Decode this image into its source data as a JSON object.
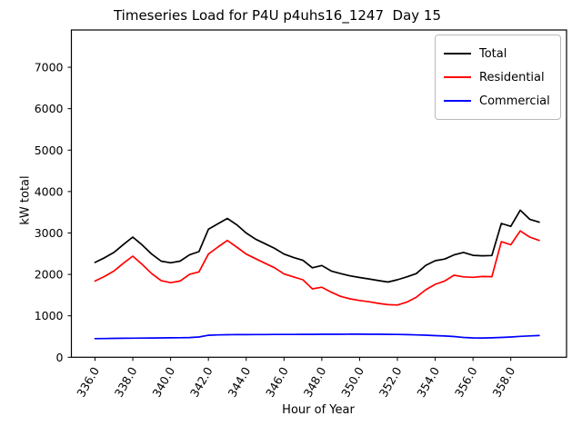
{
  "figure": {
    "title": "Timeseries Load for P4U p4uhs16_1247  Day 15",
    "xlabel": "Hour of Year",
    "ylabel": "kW total"
  },
  "legend": {
    "entries": [
      {
        "label": "Total",
        "color": "#000000"
      },
      {
        "label": "Residential",
        "color": "#ff0000"
      },
      {
        "label": "Commercial",
        "color": "#0000ff"
      }
    ]
  },
  "chart_data": {
    "type": "line",
    "title": "Timeseries Load for P4U p4uhs16_1247  Day 15",
    "xlabel": "Hour of Year",
    "ylabel": "kW total",
    "xlim": [
      334.75,
      360.95
    ],
    "ylim": [
      0,
      7900
    ],
    "xticks": [
      336,
      338,
      340,
      342,
      344,
      346,
      348,
      350,
      352,
      354,
      356,
      358
    ],
    "yticks": [
      0,
      1000,
      2000,
      3000,
      4000,
      5000,
      6000,
      7000
    ],
    "grid": false,
    "legend_position": "upper right",
    "x": [
      336.0,
      336.5,
      337.0,
      337.5,
      338.0,
      338.5,
      339.0,
      339.5,
      340.0,
      340.5,
      341.0,
      341.5,
      342.0,
      342.5,
      343.0,
      343.5,
      344.0,
      344.5,
      345.0,
      345.5,
      346.0,
      346.5,
      347.0,
      347.5,
      348.0,
      348.5,
      349.0,
      349.5,
      350.0,
      350.5,
      351.0,
      351.5,
      352.0,
      352.5,
      353.0,
      353.5,
      354.0,
      354.5,
      355.0,
      355.5,
      356.0,
      356.5,
      357.0,
      357.5,
      358.0,
      358.5,
      359.0,
      359.5
    ],
    "series": [
      {
        "name": "Total",
        "color": "#000000",
        "values": [
          2290,
          2400,
          2530,
          2720,
          2900,
          2710,
          2490,
          2320,
          2280,
          2320,
          2470,
          2550,
          3090,
          3220,
          3350,
          3200,
          3000,
          2850,
          2740,
          2630,
          2490,
          2410,
          2340,
          2160,
          2215,
          2080,
          2020,
          1965,
          1925,
          1890,
          1850,
          1815,
          1870,
          1940,
          2020,
          2220,
          2330,
          2370,
          2470,
          2530,
          2460,
          2450,
          2455,
          3230,
          3160,
          3550,
          3330,
          3260
        ]
      },
      {
        "name": "Residential",
        "color": "#ff0000",
        "values": [
          1840,
          1950,
          2080,
          2270,
          2440,
          2240,
          2020,
          1850,
          1800,
          1840,
          2000,
          2060,
          2490,
          2660,
          2820,
          2660,
          2490,
          2380,
          2270,
          2160,
          2010,
          1940,
          1870,
          1650,
          1690,
          1570,
          1470,
          1410,
          1370,
          1340,
          1300,
          1270,
          1260,
          1330,
          1450,
          1630,
          1760,
          1840,
          1980,
          1940,
          1930,
          1950,
          1945,
          2790,
          2715,
          3050,
          2900,
          2820
        ]
      },
      {
        "name": "Commercial",
        "color": "#0000ff",
        "values": [
          450,
          452,
          455,
          458,
          460,
          463,
          465,
          468,
          470,
          472,
          475,
          490,
          530,
          540,
          543,
          545,
          546,
          548,
          549,
          550,
          550,
          551,
          552,
          553,
          554,
          555,
          555,
          556,
          556,
          555,
          554,
          552,
          550,
          545,
          540,
          532,
          522,
          512,
          500,
          478,
          468,
          465,
          470,
          478,
          490,
          505,
          515,
          525
        ]
      }
    ]
  }
}
